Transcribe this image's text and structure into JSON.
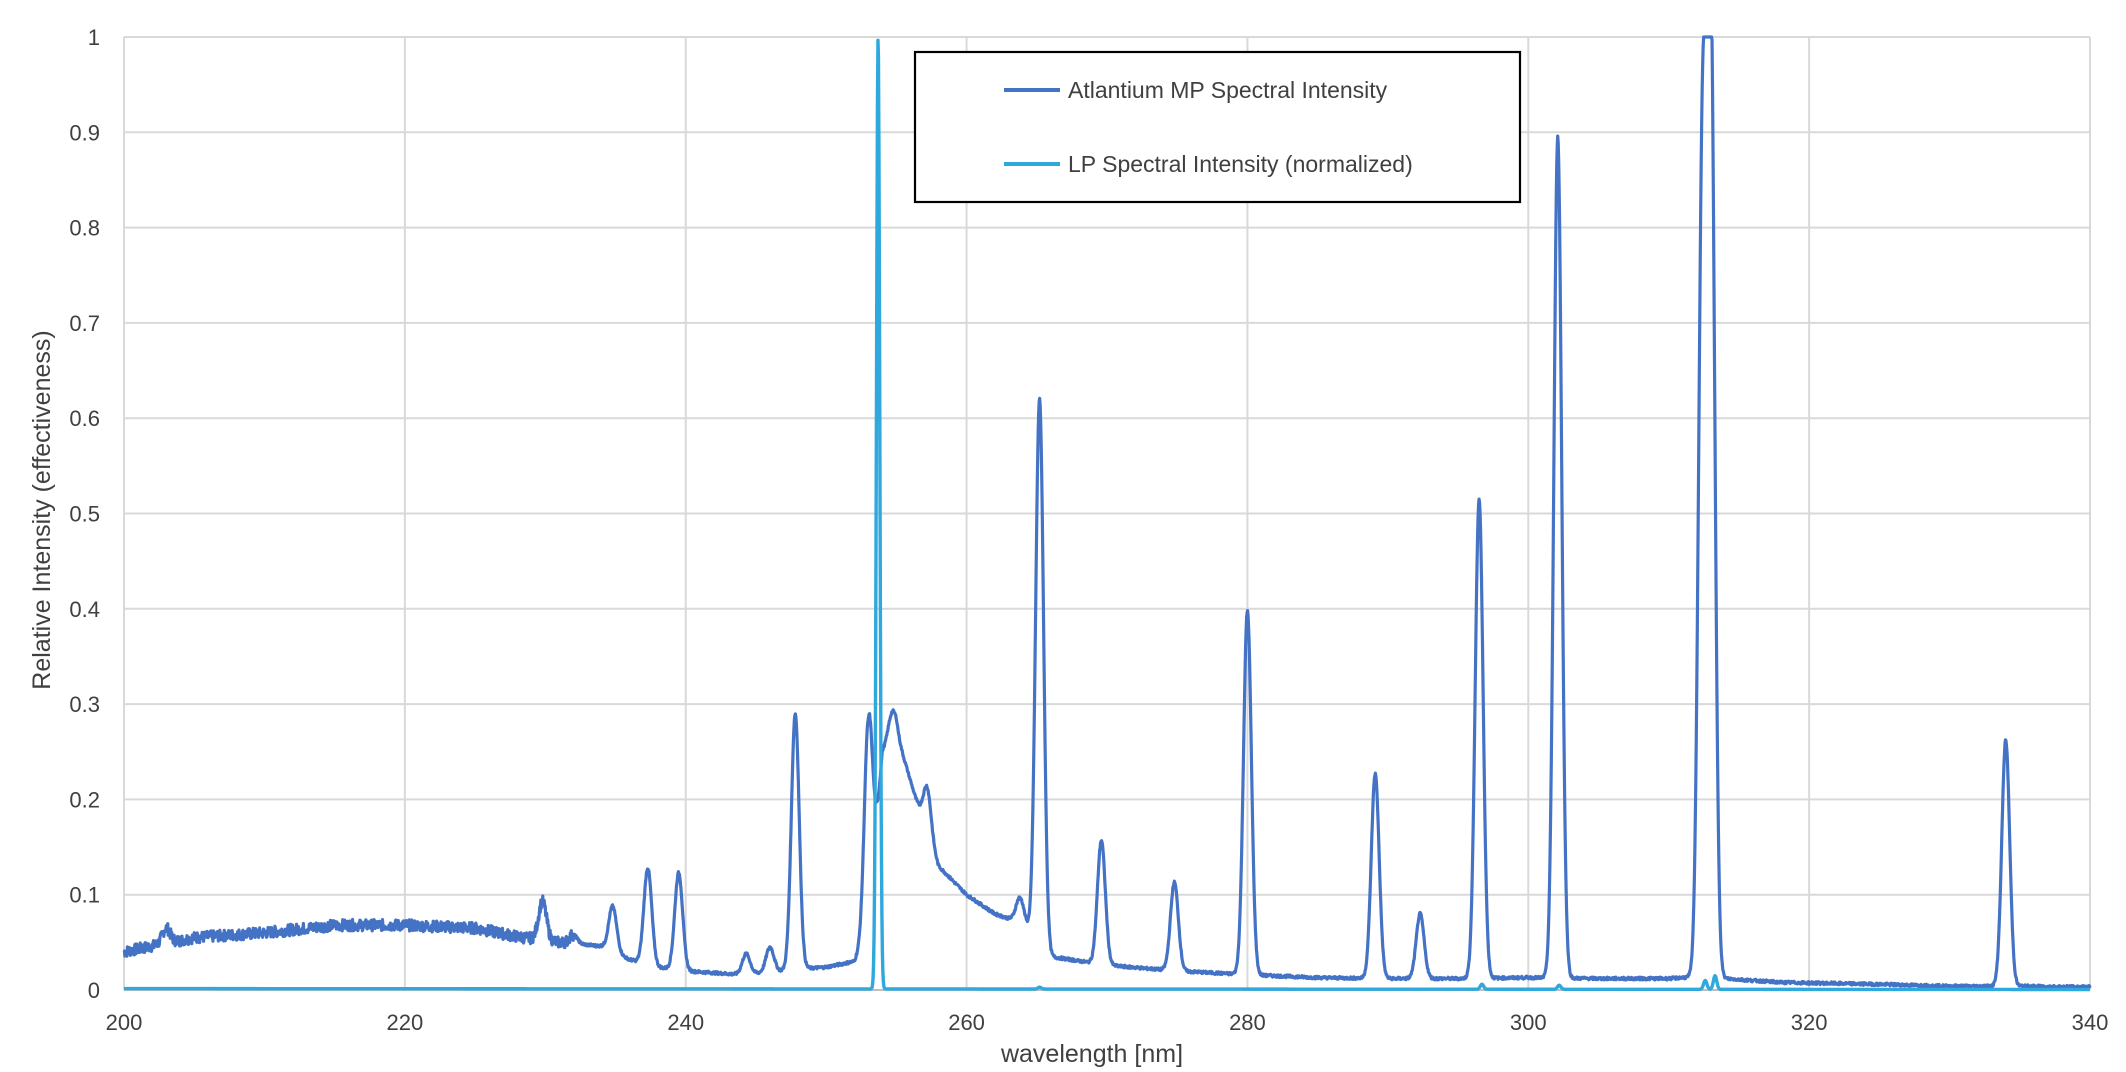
{
  "chart_data": {
    "type": "line",
    "title": "",
    "xlabel": "wavelength [nm]",
    "ylabel": "Relative Intensity (effectiveness)",
    "xlim": [
      200,
      340
    ],
    "ylim": [
      0,
      1
    ],
    "xticks": [
      "200",
      "220",
      "240",
      "260",
      "280",
      "300",
      "320",
      "340"
    ],
    "yticks": [
      "0",
      "0.1",
      "0.2",
      "0.3",
      "0.4",
      "0.5",
      "0.6",
      "0.7",
      "0.8",
      "0.9",
      "1"
    ],
    "grid": true,
    "legend": "top-center",
    "series": [
      {
        "name": "Atlantium MP Spectral Intensity",
        "color": "#4472c4",
        "baseline": [
          [
            200,
            0.04
          ],
          [
            205,
            0.055
          ],
          [
            210,
            0.06
          ],
          [
            215,
            0.068
          ],
          [
            220,
            0.068
          ],
          [
            225,
            0.065
          ],
          [
            228,
            0.056
          ],
          [
            231,
            0.05
          ],
          [
            234,
            0.046
          ],
          [
            236,
            0.032
          ],
          [
            238,
            0.024
          ],
          [
            240,
            0.02
          ],
          [
            244,
            0.016
          ],
          [
            248,
            0.022
          ],
          [
            250,
            0.024
          ],
          [
            252,
            0.03
          ],
          [
            253,
            0.06
          ],
          [
            254,
            0.25
          ],
          [
            255,
            0.27
          ],
          [
            256,
            0.22
          ],
          [
            257,
            0.17
          ],
          [
            258,
            0.13
          ],
          [
            260,
            0.1
          ],
          [
            262,
            0.08
          ],
          [
            264,
            0.07
          ],
          [
            266,
            0.035
          ],
          [
            270,
            0.026
          ],
          [
            275,
            0.02
          ],
          [
            280,
            0.016
          ],
          [
            285,
            0.013
          ],
          [
            290,
            0.012
          ],
          [
            295,
            0.012
          ],
          [
            300,
            0.013
          ],
          [
            305,
            0.012
          ],
          [
            310,
            0.012
          ],
          [
            312,
            0.014
          ],
          [
            314,
            0.012
          ],
          [
            318,
            0.008
          ],
          [
            325,
            0.006
          ],
          [
            330,
            0.004
          ],
          [
            335,
            0.004
          ],
          [
            340,
            0.003
          ]
        ],
        "peaks": [
          {
            "x": 203.0,
            "y": 0.065
          },
          {
            "x": 229.8,
            "y": 0.093
          },
          {
            "x": 232.0,
            "y": 0.058
          },
          {
            "x": 234.8,
            "y": 0.088
          },
          {
            "x": 237.3,
            "y": 0.128
          },
          {
            "x": 239.5,
            "y": 0.123
          },
          {
            "x": 244.3,
            "y": 0.038
          },
          {
            "x": 246.0,
            "y": 0.045
          },
          {
            "x": 247.8,
            "y": 0.29
          },
          {
            "x": 253.0,
            "y": 0.283
          },
          {
            "x": 254.7,
            "y": 0.292
          },
          {
            "x": 257.2,
            "y": 0.213
          },
          {
            "x": 263.8,
            "y": 0.097
          },
          {
            "x": 265.2,
            "y": 0.62
          },
          {
            "x": 269.6,
            "y": 0.157
          },
          {
            "x": 274.8,
            "y": 0.113
          },
          {
            "x": 280.0,
            "y": 0.398
          },
          {
            "x": 289.1,
            "y": 0.227
          },
          {
            "x": 292.3,
            "y": 0.08
          },
          {
            "x": 296.5,
            "y": 0.515
          },
          {
            "x": 302.1,
            "y": 0.895
          },
          {
            "x": 312.4,
            "y": 0.86
          },
          {
            "x": 313.0,
            "y": 1.0
          },
          {
            "x": 334.0,
            "y": 0.262
          }
        ]
      },
      {
        "name": "LP Spectral Intensity (normalized)",
        "color": "#2ea8dd",
        "baseline": [
          [
            200,
            0.0015
          ],
          [
            340,
            0.0005
          ]
        ],
        "peaks": [
          {
            "x": 253.7,
            "y": 1.0
          },
          {
            "x": 265.2,
            "y": 0.003
          },
          {
            "x": 296.7,
            "y": 0.006
          },
          {
            "x": 302.2,
            "y": 0.005
          },
          {
            "x": 312.6,
            "y": 0.01
          },
          {
            "x": 313.3,
            "y": 0.015
          }
        ]
      }
    ]
  }
}
